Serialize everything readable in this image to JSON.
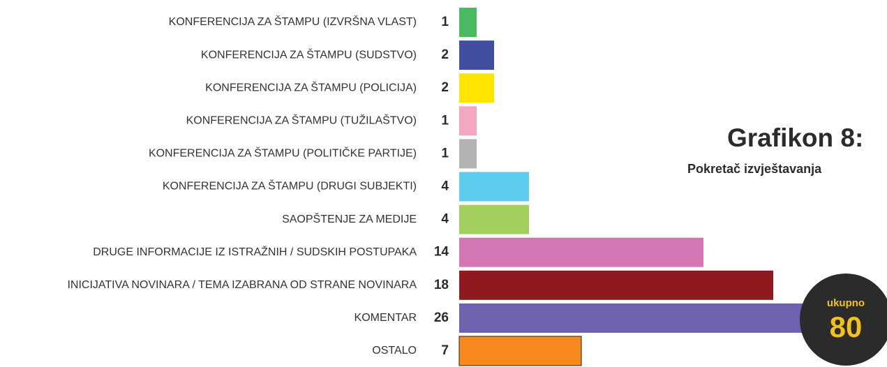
{
  "chart_data": {
    "type": "bar",
    "orientation": "horizontal",
    "title": "Grafikon 8:",
    "subtitle": "Pokretač izvještavanja",
    "categories": [
      "KONFERENCIJA ZA ŠTAMPU (IZVRŠNA VLAST)",
      "KONFERENCIJA ZA ŠTAMPU (SUDSTVO)",
      "KONFERENCIJA ZA ŠTAMPU (POLICIJA)",
      "KONFERENCIJA ZA ŠTAMPU (TUŽILAŠTVO)",
      "KONFERENCIJA ZA ŠTAMPU (POLITIČKE PARTIJE)",
      "KONFERENCIJA ZA ŠTAMPU (DRUGI SUBJEKTI)",
      "SAOPŠTENJE ZA MEDIJE",
      "DRUGE INFORMACIJE IZ ISTRAŽNIH / SUDSKIH POSTUPAKA",
      "INICIJATIVA NOVINARA / TEMA IZABRANA OD STRANE NOVINARA",
      "KOMENTAR",
      "OSTALO"
    ],
    "values": [
      1,
      2,
      2,
      1,
      1,
      4,
      4,
      14,
      18,
      26,
      7
    ],
    "colors": [
      "#4cb963",
      "#424fa1",
      "#ffe600",
      "#f4a7c0",
      "#b3b3b3",
      "#5ccbee",
      "#a3cf5f",
      "#d277b3",
      "#8e1a1f",
      "#6c62ad",
      "#f7891f"
    ],
    "total": {
      "label": "ukupno",
      "value": 80
    }
  }
}
